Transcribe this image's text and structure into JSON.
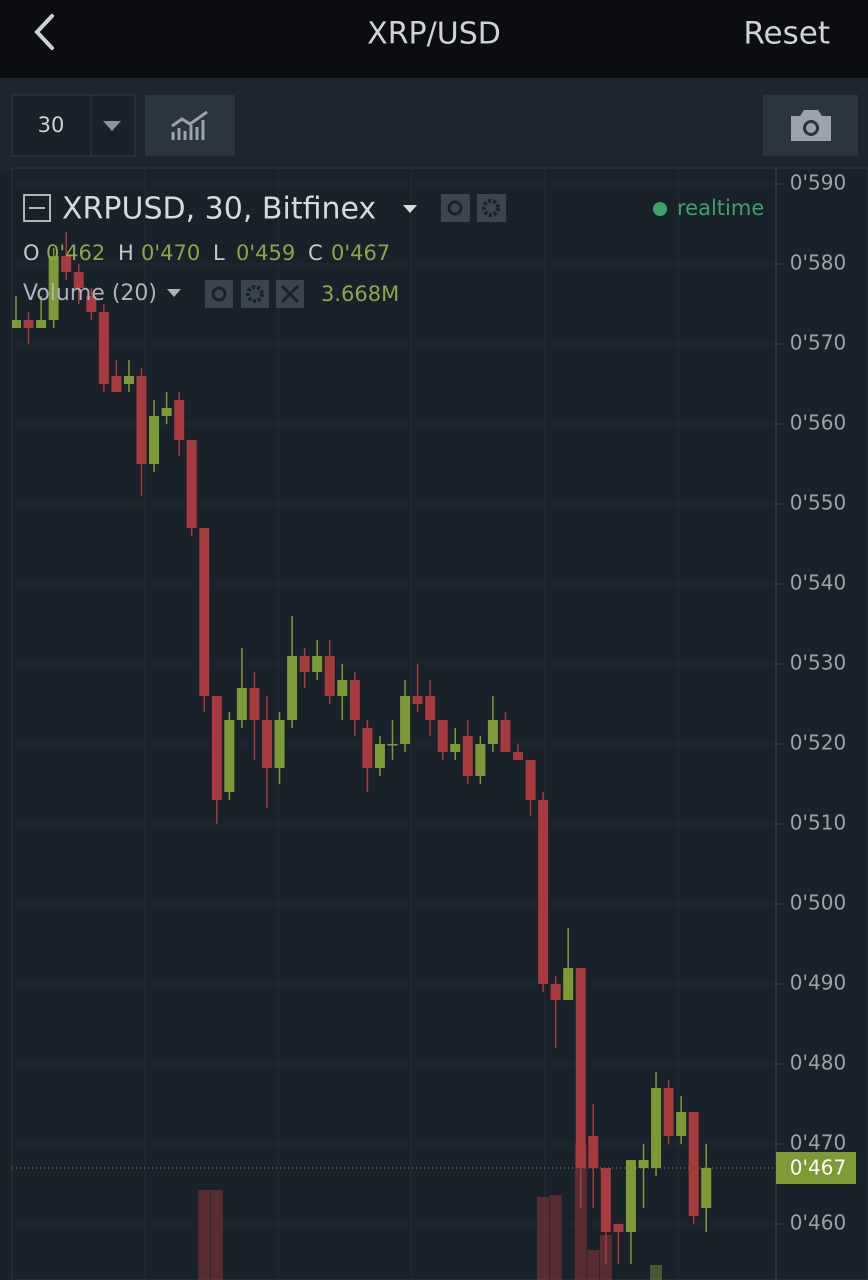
{
  "header": {
    "title": "XRP/USD",
    "action": "Reset"
  },
  "toolbar": {
    "interval": "30"
  },
  "chart_data": {
    "type": "candlestick",
    "title": "XRPUSD, 30, Bitfinex",
    "status": "realtime",
    "ohlc_labels": [
      "O",
      "H",
      "L",
      "C"
    ],
    "ohlc_values": [
      "0'462",
      "0'470",
      "0'459",
      "0'467"
    ],
    "volume_title": "Volume (20)",
    "volume_value": "3.668M",
    "up_color": "#7c9b35",
    "down_color": "#a8393c",
    "ylim": [
      0.453,
      0.592
    ],
    "yticks": [
      {
        "value": 0.59,
        "label": "0'590"
      },
      {
        "value": 0.58,
        "label": "0'580"
      },
      {
        "value": 0.57,
        "label": "0'570"
      },
      {
        "value": 0.56,
        "label": "0'560"
      },
      {
        "value": 0.55,
        "label": "0'550"
      },
      {
        "value": 0.54,
        "label": "0'540"
      },
      {
        "value": 0.53,
        "label": "0'530"
      },
      {
        "value": 0.52,
        "label": "0'520"
      },
      {
        "value": 0.51,
        "label": "0'510"
      },
      {
        "value": 0.5,
        "label": "0'500"
      },
      {
        "value": 0.49,
        "label": "0'490"
      },
      {
        "value": 0.48,
        "label": "0'480"
      },
      {
        "value": 0.47,
        "label": "0'470"
      },
      {
        "value": 0.46,
        "label": "0'460"
      }
    ],
    "last_price": {
      "value": 0.467,
      "label": "0'467"
    },
    "volume_lim": [
      0,
      20
    ],
    "open": [
      0.572,
      0.573,
      0.572,
      0.573,
      0.581,
      0.579,
      0.576,
      0.574,
      0.566,
      0.565,
      0.566,
      0.555,
      0.561,
      0.563,
      0.558,
      0.547,
      0.526,
      0.514,
      0.523,
      0.527,
      0.523,
      0.517,
      0.523,
      0.531,
      0.529,
      0.531,
      0.526,
      0.528,
      0.522,
      0.517,
      0.52,
      0.52,
      0.526,
      0.526,
      0.523,
      0.519,
      0.521,
      0.516,
      0.52,
      0.523,
      0.519,
      0.518,
      0.513,
      0.49,
      0.488,
      0.492,
      0.471,
      0.467,
      0.46,
      0.459,
      0.467,
      0.467,
      0.477,
      0.471,
      0.474,
      0.462
    ],
    "high": [
      0.576,
      0.574,
      0.576,
      0.582,
      0.584,
      0.58,
      0.577,
      0.575,
      0.568,
      0.568,
      0.567,
      0.563,
      0.564,
      0.564,
      0.558,
      0.547,
      0.526,
      0.524,
      0.532,
      0.529,
      0.526,
      0.524,
      0.536,
      0.532,
      0.533,
      0.533,
      0.53,
      0.529,
      0.523,
      0.521,
      0.523,
      0.528,
      0.53,
      0.528,
      0.523,
      0.522,
      0.523,
      0.521,
      0.526,
      0.524,
      0.52,
      0.518,
      0.514,
      0.491,
      0.497,
      0.492,
      0.475,
      0.467,
      0.46,
      0.468,
      0.47,
      0.479,
      0.478,
      0.476,
      0.474,
      0.47
    ],
    "low": [
      0.572,
      0.57,
      0.572,
      0.572,
      0.578,
      0.575,
      0.573,
      0.564,
      0.564,
      0.564,
      0.551,
      0.554,
      0.56,
      0.556,
      0.546,
      0.524,
      0.51,
      0.513,
      0.522,
      0.518,
      0.512,
      0.515,
      0.522,
      0.527,
      0.528,
      0.525,
      0.523,
      0.521,
      0.514,
      0.516,
      0.518,
      0.519,
      0.524,
      0.521,
      0.518,
      0.518,
      0.515,
      0.515,
      0.519,
      0.519,
      0.518,
      0.511,
      0.489,
      0.482,
      0.488,
      0.462,
      0.462,
      0.455,
      0.455,
      0.455,
      0.462,
      0.466,
      0.47,
      0.47,
      0.46,
      0.459
    ],
    "close": [
      0.573,
      0.572,
      0.573,
      0.581,
      0.579,
      0.577,
      0.574,
      0.565,
      0.564,
      0.566,
      0.555,
      0.561,
      0.562,
      0.558,
      0.547,
      0.526,
      0.513,
      0.523,
      0.527,
      0.523,
      0.517,
      0.523,
      0.531,
      0.529,
      0.531,
      0.526,
      0.528,
      0.523,
      0.517,
      0.52,
      0.52,
      0.526,
      0.525,
      0.523,
      0.519,
      0.52,
      0.516,
      0.52,
      0.523,
      0.519,
      0.518,
      0.513,
      0.49,
      0.488,
      0.492,
      0.467,
      0.467,
      0.459,
      0.459,
      0.468,
      0.468,
      0.477,
      0.471,
      0.474,
      0.461,
      0.467
    ],
    "volume": [
      2.5,
      2.5,
      2.5,
      2.5,
      2.5,
      2.5,
      2.5,
      2.5,
      2.5,
      2.5,
      2.5,
      2.5,
      2.5,
      2.5,
      2.5,
      14,
      14,
      2.5,
      2.5,
      2.5,
      2.5,
      2.5,
      2.5,
      2.5,
      2.5,
      2.5,
      2.5,
      2.5,
      2.5,
      2.5,
      2.5,
      2.5,
      2.5,
      2.5,
      2.5,
      2.5,
      2.5,
      2.5,
      2.5,
      2.5,
      2.5,
      2.5,
      13.3,
      13.5,
      3,
      18.5,
      8,
      9.5,
      2.5,
      5,
      2.5,
      6.5,
      2.5,
      2.5,
      2.5,
      3.668
    ]
  }
}
